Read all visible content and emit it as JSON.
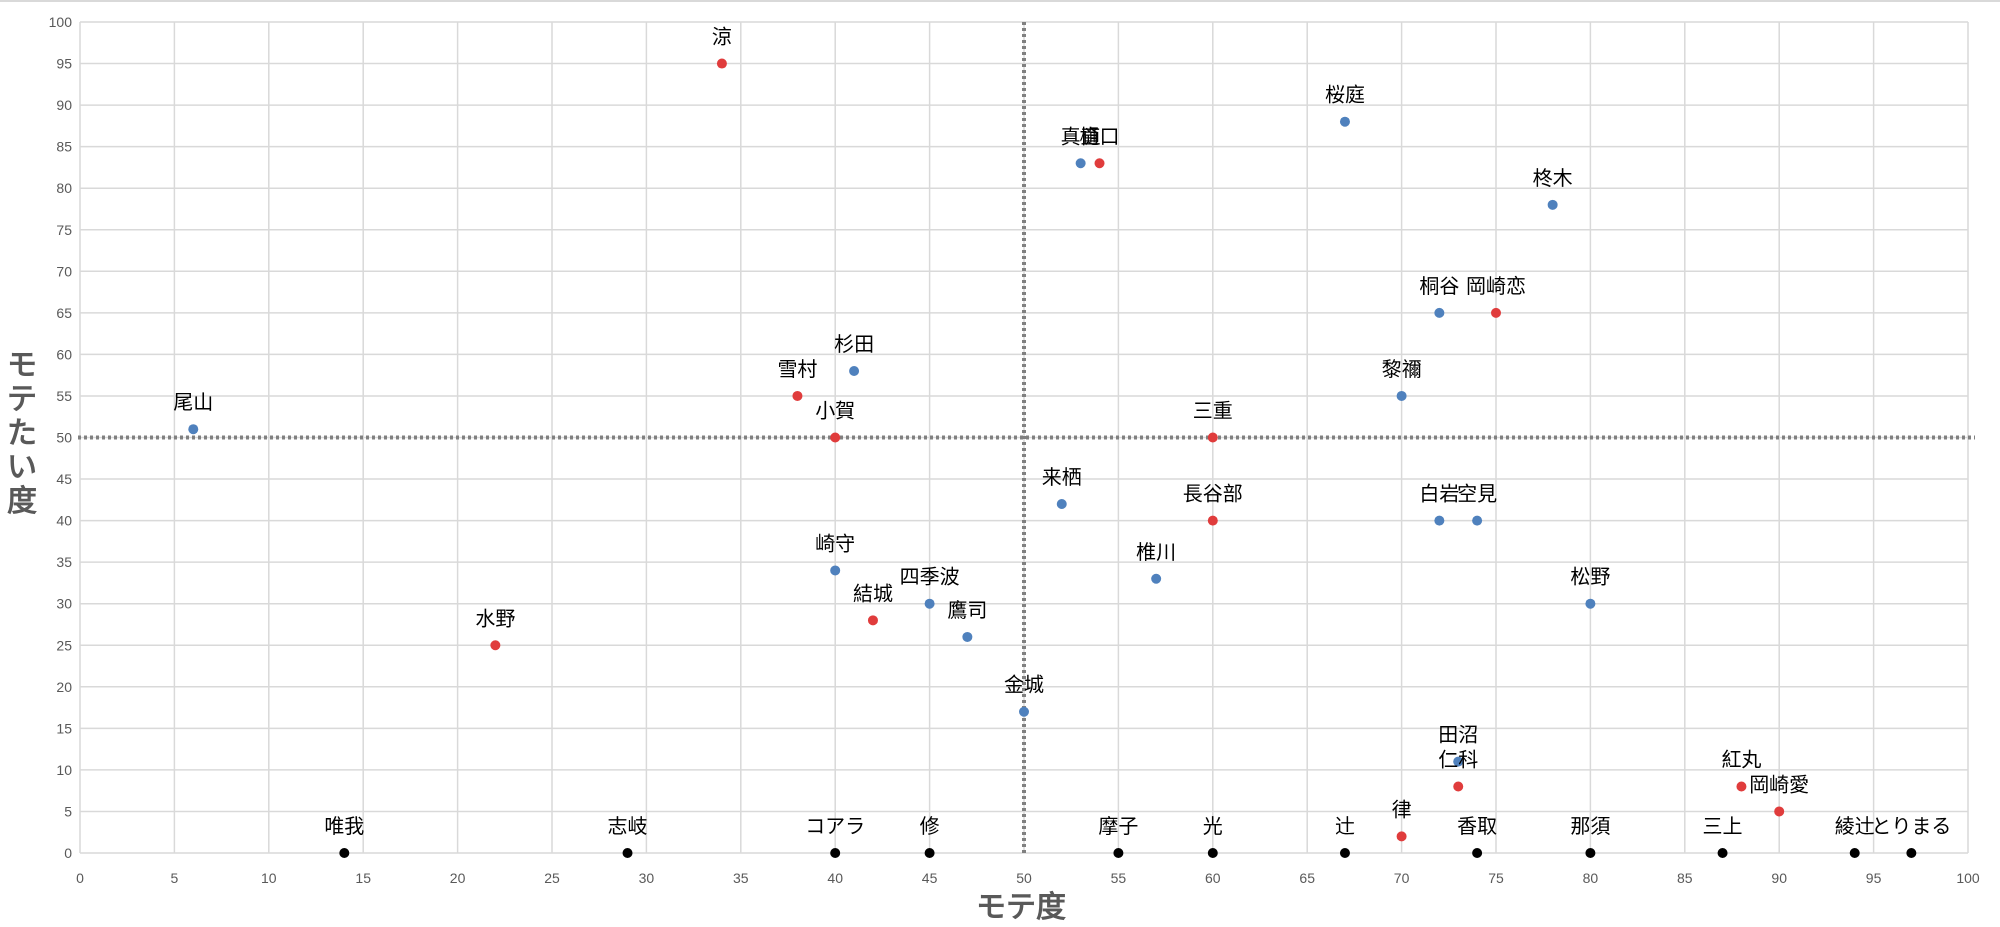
{
  "chart_data": {
    "type": "scatter",
    "xlabel": "モテ度",
    "ylabel": "モテたい度",
    "xlim": [
      0,
      100
    ],
    "ylim": [
      0,
      100
    ],
    "x_ticks": [
      "0",
      "5",
      "10",
      "15",
      "20",
      "25",
      "30",
      "35",
      "40",
      "45",
      "50",
      "55",
      "60",
      "65",
      "70",
      "75",
      "80",
      "85",
      "90",
      "95",
      "100"
    ],
    "y_ticks": [
      "0",
      "5",
      "10",
      "15",
      "20",
      "25",
      "30",
      "35",
      "40",
      "45",
      "50",
      "55",
      "60",
      "65",
      "70",
      "75",
      "80",
      "85",
      "90",
      "95",
      "100"
    ],
    "grid": true,
    "reference_lines": {
      "x": 50,
      "y": 50
    },
    "colors": {
      "blue": "#4f81bd",
      "red": "#e03c3c",
      "black": "#000000"
    },
    "points": [
      {
        "label": "涼",
        "x": 34,
        "y": 95,
        "color": "red"
      },
      {
        "label": "桜庭",
        "x": 67,
        "y": 88,
        "color": "blue"
      },
      {
        "label": "真直",
        "x": 53,
        "y": 83,
        "color": "blue"
      },
      {
        "label": "樋口",
        "x": 54,
        "y": 83,
        "color": "red"
      },
      {
        "label": "柊木",
        "x": 78,
        "y": 78,
        "color": "blue"
      },
      {
        "label": "桐谷",
        "x": 72,
        "y": 65,
        "color": "blue"
      },
      {
        "label": "岡崎恋",
        "x": 75,
        "y": 65,
        "color": "red"
      },
      {
        "label": "杉田",
        "x": 41,
        "y": 58,
        "color": "blue"
      },
      {
        "label": "雪村",
        "x": 38,
        "y": 55,
        "color": "red"
      },
      {
        "label": "黎禰",
        "x": 70,
        "y": 55,
        "color": "blue"
      },
      {
        "label": "尾山",
        "x": 6,
        "y": 51,
        "color": "blue"
      },
      {
        "label": "小賀",
        "x": 40,
        "y": 50,
        "color": "red"
      },
      {
        "label": "三重",
        "x": 60,
        "y": 50,
        "color": "red"
      },
      {
        "label": "来栖",
        "x": 52,
        "y": 42,
        "color": "blue"
      },
      {
        "label": "長谷部",
        "x": 60,
        "y": 40,
        "color": "red"
      },
      {
        "label": "白岩",
        "x": 72,
        "y": 40,
        "color": "blue"
      },
      {
        "label": "空見",
        "x": 74,
        "y": 40,
        "color": "blue"
      },
      {
        "label": "崎守",
        "x": 40,
        "y": 34,
        "color": "blue"
      },
      {
        "label": "椎川",
        "x": 57,
        "y": 33,
        "color": "blue"
      },
      {
        "label": "四季波",
        "x": 45,
        "y": 30,
        "color": "blue"
      },
      {
        "label": "松野",
        "x": 80,
        "y": 30,
        "color": "blue"
      },
      {
        "label": "結城",
        "x": 42,
        "y": 28,
        "color": "red"
      },
      {
        "label": "鷹司",
        "x": 47,
        "y": 26,
        "color": "blue"
      },
      {
        "label": "水野",
        "x": 22,
        "y": 25,
        "color": "red"
      },
      {
        "label": "金城",
        "x": 50,
        "y": 17,
        "color": "blue"
      },
      {
        "label": "田沼",
        "x": 73,
        "y": 11,
        "color": "blue"
      },
      {
        "label": "仁科",
        "x": 73,
        "y": 8,
        "color": "red"
      },
      {
        "label": "紅丸",
        "x": 88,
        "y": 8,
        "color": "red"
      },
      {
        "label": "岡崎愛",
        "x": 90,
        "y": 5,
        "color": "red"
      },
      {
        "label": "律",
        "x": 70,
        "y": 2,
        "color": "red"
      },
      {
        "label": "唯我",
        "x": 14,
        "y": 0,
        "color": "black"
      },
      {
        "label": "志岐",
        "x": 29,
        "y": 0,
        "color": "black"
      },
      {
        "label": "コアラ",
        "x": 40,
        "y": 0,
        "color": "black"
      },
      {
        "label": "修",
        "x": 45,
        "y": 0,
        "color": "black"
      },
      {
        "label": "摩子",
        "x": 55,
        "y": 0,
        "color": "black"
      },
      {
        "label": "光",
        "x": 60,
        "y": 0,
        "color": "black"
      },
      {
        "label": "辻",
        "x": 67,
        "y": 0,
        "color": "black"
      },
      {
        "label": "香取",
        "x": 74,
        "y": 0,
        "color": "black"
      },
      {
        "label": "那須",
        "x": 80,
        "y": 0,
        "color": "black"
      },
      {
        "label": "三上",
        "x": 87,
        "y": 0,
        "color": "black"
      },
      {
        "label": "綾辻",
        "x": 94,
        "y": 0,
        "color": "black"
      },
      {
        "label": "とりまる",
        "x": 97,
        "y": 0,
        "color": "black"
      }
    ]
  }
}
